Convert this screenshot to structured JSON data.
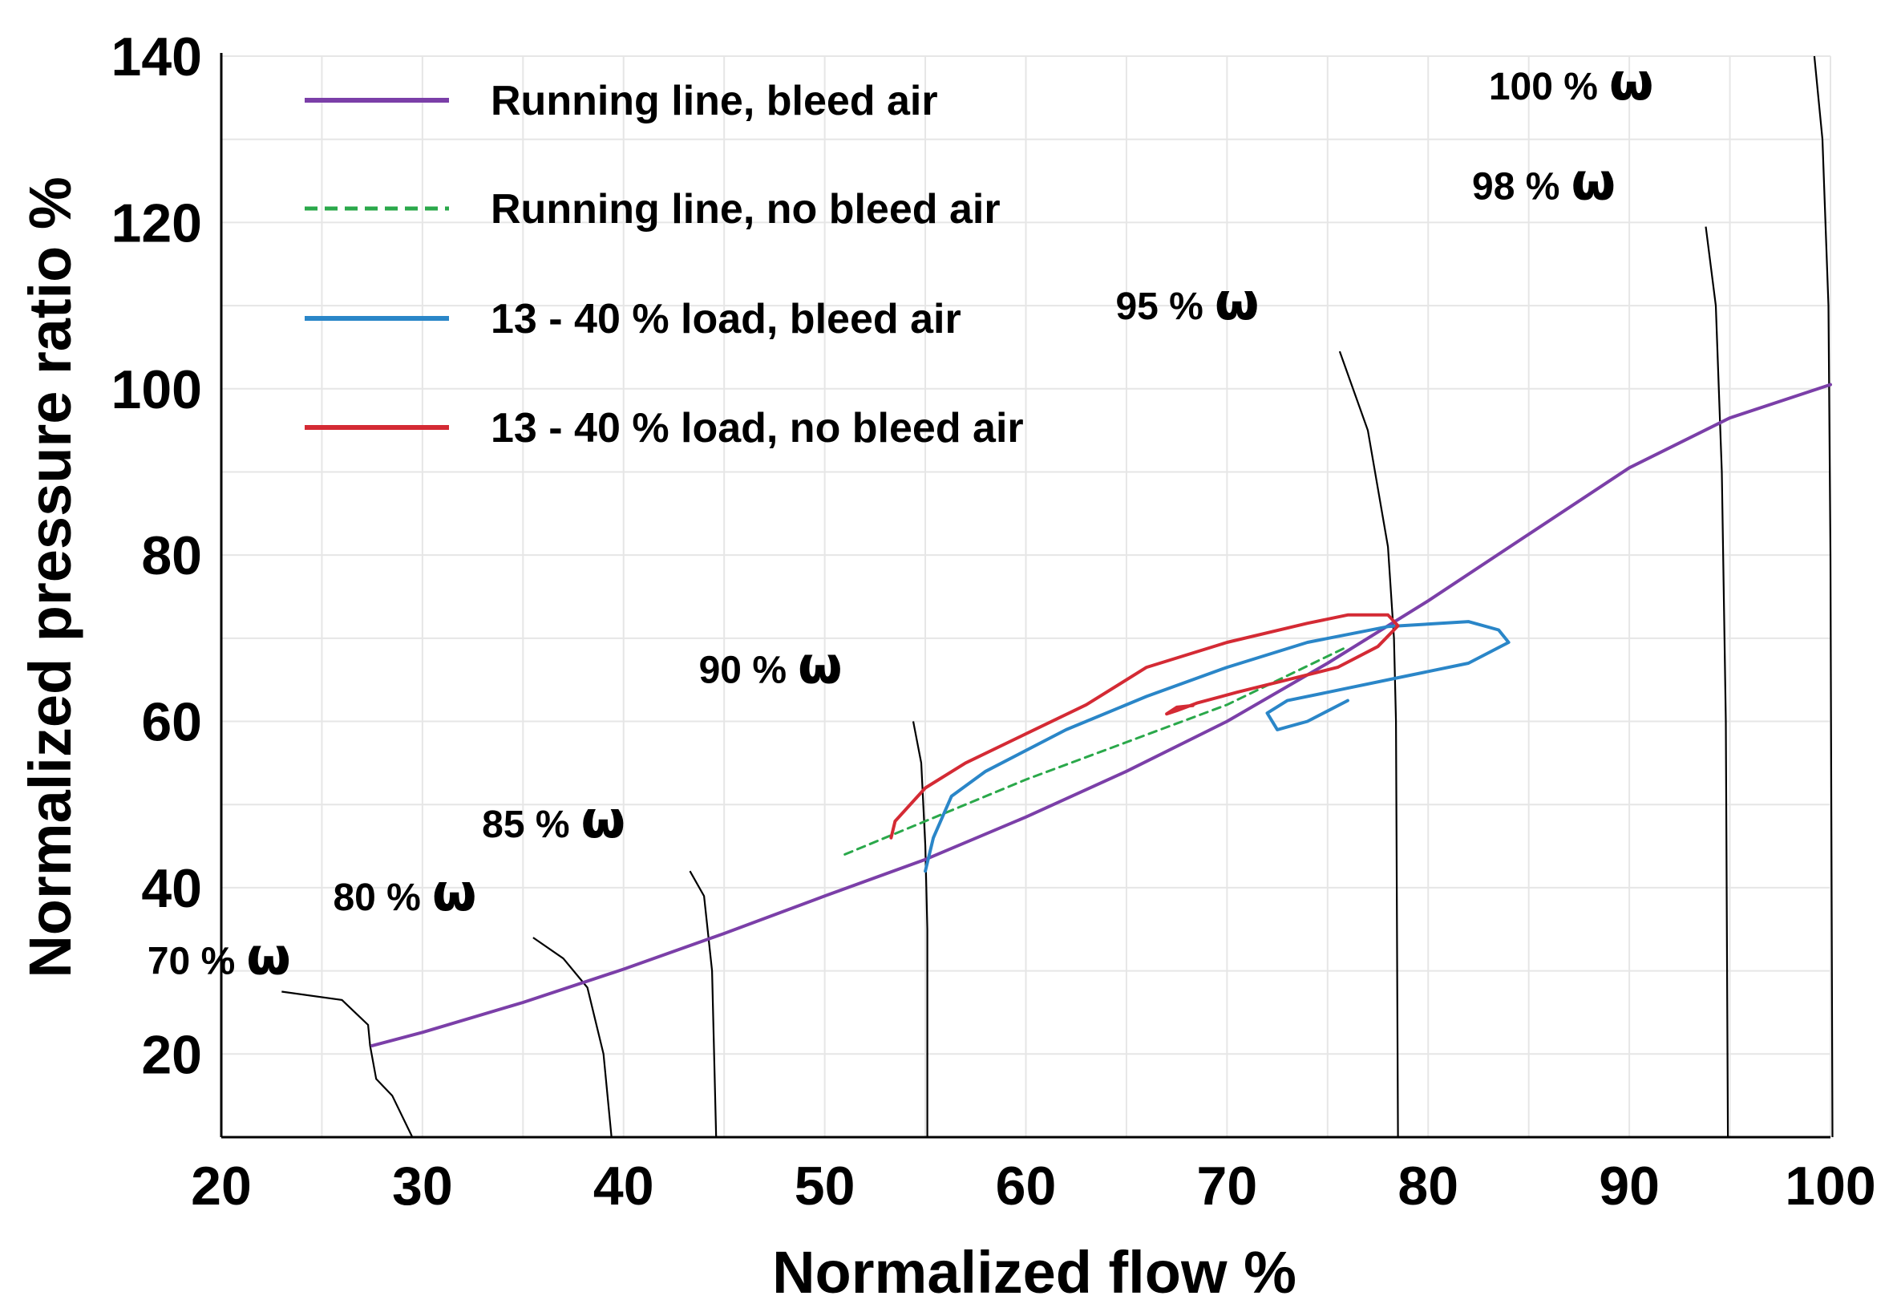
{
  "chart_data": {
    "type": "line",
    "title": "",
    "xlabel": "Normalized flow %",
    "ylabel": "Normalized pressure ratio %",
    "xlim": [
      20,
      100
    ],
    "ylim": [
      10,
      140
    ],
    "xticks": [
      20,
      30,
      40,
      50,
      60,
      70,
      80,
      90,
      100
    ],
    "yticks": [
      20,
      40,
      60,
      80,
      100,
      120,
      140
    ],
    "grid": true,
    "legend_position": "top-left",
    "colors": {
      "running_bleed": "#7b3fa8",
      "running_no_bleed": "#2aa84a",
      "load_bleed": "#2a86c8",
      "load_no_bleed": "#d42a34",
      "speed_lines": "#000000",
      "grid": "#e6e6e6"
    },
    "series": [
      {
        "name": "Running line, bleed air",
        "style": "solid",
        "color": "#7b3fa8",
        "points": [
          [
            27.5,
            21
          ],
          [
            30,
            22.6
          ],
          [
            35,
            26.2
          ],
          [
            40,
            30.2
          ],
          [
            45,
            34.5
          ],
          [
            50,
            39
          ],
          [
            55,
            43.4
          ],
          [
            60,
            48.5
          ],
          [
            65,
            54
          ],
          [
            70,
            60
          ],
          [
            75,
            67
          ],
          [
            80,
            74.5
          ],
          [
            85,
            82.5
          ],
          [
            90,
            90.5
          ],
          [
            95,
            96.5
          ],
          [
            100,
            100.5
          ]
        ]
      },
      {
        "name": "Running line, no bleed air",
        "style": "dashed",
        "color": "#2aa84a",
        "points": [
          [
            51,
            44
          ],
          [
            56,
            49
          ],
          [
            60,
            53
          ],
          [
            65,
            57.5
          ],
          [
            70,
            62
          ],
          [
            76,
            69
          ]
        ]
      },
      {
        "name": "13 - 40 % load, bleed air",
        "style": "solid",
        "color": "#2a86c8",
        "points": [
          [
            55,
            42
          ],
          [
            55.4,
            46
          ],
          [
            56.3,
            51
          ],
          [
            58,
            54
          ],
          [
            62,
            59
          ],
          [
            66,
            63
          ],
          [
            70,
            66.5
          ],
          [
            74,
            69.5
          ],
          [
            78,
            71.4
          ],
          [
            82,
            72
          ],
          [
            83.5,
            71
          ],
          [
            84,
            69.5
          ],
          [
            82,
            67
          ],
          [
            79,
            65.5
          ],
          [
            76,
            64
          ],
          [
            73,
            62.5
          ],
          [
            72,
            61
          ],
          [
            72.5,
            59
          ],
          [
            74,
            60
          ],
          [
            76,
            62.5
          ]
        ]
      },
      {
        "name": "13 - 40 % load, no bleed air",
        "style": "solid",
        "color": "#d42a34",
        "points": [
          [
            53.3,
            46
          ],
          [
            53.5,
            48
          ],
          [
            55,
            52
          ],
          [
            57,
            55
          ],
          [
            60,
            58.5
          ],
          [
            63,
            62
          ],
          [
            66,
            66.5
          ],
          [
            70,
            69.5
          ],
          [
            74,
            71.8
          ],
          [
            76,
            72.8
          ],
          [
            78,
            72.8
          ],
          [
            78.5,
            71.5
          ],
          [
            77.5,
            69
          ],
          [
            75.5,
            66.5
          ],
          [
            73,
            65
          ],
          [
            70.5,
            63.5
          ],
          [
            68.5,
            62.2
          ],
          [
            67.5,
            61.3
          ],
          [
            67,
            60.9
          ],
          [
            67.5,
            61.7
          ],
          [
            68.3,
            61.9
          ]
        ]
      }
    ],
    "speed_lines": [
      {
        "label": "70 %",
        "points": [
          [
            23,
            27.5
          ],
          [
            26,
            26.5
          ],
          [
            27.3,
            23.5
          ],
          [
            27.4,
            21
          ],
          [
            27.7,
            17
          ],
          [
            28.5,
            15
          ],
          [
            29.5,
            10
          ]
        ]
      },
      {
        "label": "80 %",
        "points": [
          [
            35.5,
            34
          ],
          [
            37,
            31.5
          ],
          [
            38.2,
            28
          ],
          [
            39,
            20
          ],
          [
            39.4,
            10
          ]
        ]
      },
      {
        "label": "85 %",
        "points": [
          [
            43.3,
            42
          ],
          [
            44,
            39
          ],
          [
            44.4,
            30
          ],
          [
            44.6,
            10
          ]
        ]
      },
      {
        "label": "90 %",
        "points": [
          [
            54.4,
            60
          ],
          [
            54.8,
            55
          ],
          [
            55,
            45
          ],
          [
            55.1,
            35
          ],
          [
            55.1,
            10
          ]
        ]
      },
      {
        "label": "95 %",
        "points": [
          [
            75.6,
            104.5
          ],
          [
            77,
            95
          ],
          [
            78,
            81
          ],
          [
            78.3,
            70
          ],
          [
            78.4,
            60
          ],
          [
            78.5,
            10
          ]
        ]
      },
      {
        "label": "98 %",
        "points": [
          [
            93.8,
            119.5
          ],
          [
            94.3,
            110
          ],
          [
            94.6,
            90
          ],
          [
            94.8,
            60
          ],
          [
            94.9,
            10
          ]
        ]
      },
      {
        "label": "100 %",
        "points": [
          [
            99.2,
            140
          ],
          [
            99.6,
            130
          ],
          [
            99.9,
            110
          ],
          [
            100,
            80
          ],
          [
            100.1,
            10
          ]
        ]
      }
    ],
    "omega_symbol": "ω"
  }
}
